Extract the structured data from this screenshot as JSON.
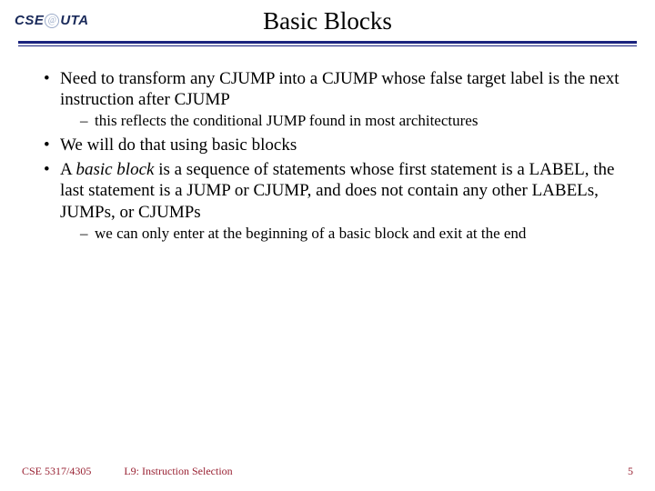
{
  "logo": {
    "left": "CSE",
    "right": "UTA"
  },
  "title": "Basic Blocks",
  "bullets": {
    "b1": "Need to transform any CJUMP into a CJUMP whose false target label is the next instruction after CJUMP",
    "b1_sub": "this reflects the conditional JUMP found in most architectures",
    "b2": "We will do that using basic blocks",
    "b3_pre": "A ",
    "b3_em": "basic block",
    "b3_post": " is a sequence of statements whose first statement is a LABEL, the last statement is a JUMP or CJUMP, and does not contain any other LABELs, JUMPs, or CJUMPs",
    "b3_sub": "we can only enter at the beginning of a basic block and exit at the end"
  },
  "footer": {
    "course": "CSE 5317/4305",
    "lecture": "L9: Instruction Selection",
    "page": "5"
  },
  "colors": {
    "rule": "#1a237e",
    "footer": "#992233"
  }
}
